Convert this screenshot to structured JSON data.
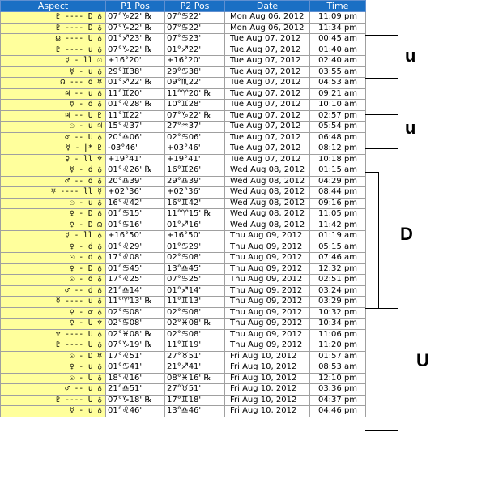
{
  "headers": [
    "Aspect",
    "P1 Pos",
    "P2 Pos",
    "Date",
    "Time"
  ],
  "rows": [
    [
      "♇ ---- D ♁",
      "07°♑22' ℞",
      "07°♋22'",
      "Mon Aug 06, 2012",
      "11:09 pm"
    ],
    [
      "♇ ---- D ♁",
      "07°♑22' ℞",
      "07°♋22'",
      "Mon Aug 06, 2012",
      "11:34 pm"
    ],
    [
      "☊ ---- U ♁",
      "01°♐23' ℞",
      "07°♋23'",
      "Tue Aug 07, 2012",
      "00:45 am"
    ],
    [
      "♇ ---- u ♁",
      "07°♑22' ℞",
      "01°♐22'",
      "Tue Aug 07, 2012",
      "01:40 am"
    ],
    [
      "☿ - ll ☉",
      "+16°20'",
      "+16°20'",
      "Tue Aug 07, 2012",
      "02:40 am"
    ],
    [
      "☿ - u ♁",
      "29°♊38'",
      "29°♋38'",
      "Tue Aug 07, 2012",
      "03:55 am"
    ],
    [
      "☊ --- d ♅",
      "01°♐22' ℞",
      "09°♏22'",
      "Tue Aug 07, 2012",
      "04:53 am"
    ],
    [
      "♃ -- u ♁",
      "11°♊20'",
      "11°♈20' ℞",
      "Tue Aug 07, 2012",
      "09:21 am"
    ],
    [
      "☿ - d ♁",
      "01°♌28' ℞",
      "10°♊28'",
      "Tue Aug 07, 2012",
      "10:10 am"
    ],
    [
      "♃ -- U ♇",
      "11°♊22'",
      "07°♑22' ℞",
      "Tue Aug 07, 2012",
      "02:57 pm"
    ],
    [
      "☉ - u ♃",
      "15°♌37'",
      "27°♒37'",
      "Tue Aug 07, 2012",
      "05:54 pm"
    ],
    [
      "♂ -- U ♁",
      "20°♎06'",
      "02°♋06'",
      "Tue Aug 07, 2012",
      "06:48 pm"
    ],
    [
      "☿ - ∥* ♇",
      "-03°46'",
      "+03°46'",
      "Tue Aug 07, 2012",
      "08:12 pm"
    ],
    [
      "♀ - ll ♆",
      "+19°41'",
      "+19°41'",
      "Tue Aug 07, 2012",
      "10:18 pm"
    ],
    [
      "☿ - d ♁",
      "01°♌26' ℞",
      "16°♊26'",
      "Wed Aug 08, 2012",
      "01:15 am"
    ],
    [
      "♂ -- d ♁",
      "20°♎39'",
      "29°♎39'",
      "Wed Aug 08, 2012",
      "04:29 pm"
    ],
    [
      "♅ ---- ll ☿",
      "+02°36'",
      "+02°36'",
      "Wed Aug 08, 2012",
      "08:44 pm"
    ],
    [
      "☉ - u ♁",
      "16°♌42'",
      "16°♊42'",
      "Wed Aug 08, 2012",
      "09:16 pm"
    ],
    [
      "♀ - D ♁",
      "01°♋15'",
      "11°♈15' ℞",
      "Wed Aug 08, 2012",
      "11:05 pm"
    ],
    [
      "♀ - D ☊",
      "01°♋16'",
      "01°♐16'",
      "Wed Aug 08, 2012",
      "11:42 pm"
    ],
    [
      "☿ - ll ♁",
      "+16°50'",
      "+16°50'",
      "Thu Aug 09, 2012",
      "01:19 am"
    ],
    [
      "♀ - d ♁",
      "01°♌29'",
      "01°♋29'",
      "Thu Aug 09, 2012",
      "05:15 am"
    ],
    [
      "☉ - d ♁",
      "17°♌08'",
      "02°♋08'",
      "Thu Aug 09, 2012",
      "07:46 am"
    ],
    [
      "♀ - D ♁",
      "01°♋45'",
      "13°♎45'",
      "Thu Aug 09, 2012",
      "12:32 pm"
    ],
    [
      "☉ - d ♁",
      "17°♌25'",
      "07°♋25'",
      "Thu Aug 09, 2012",
      "02:51 pm"
    ],
    [
      "♂ -- d ♁",
      "21°♎14'",
      "01°♐14'",
      "Thu Aug 09, 2012",
      "03:24 pm"
    ],
    [
      "☿ ---- u ♁",
      "11°♈13' ℞",
      "11°♊13'",
      "Thu Aug 09, 2012",
      "03:29 pm"
    ],
    [
      "♀ - ♂ ♁",
      "02°♋08'",
      "02°♋08'",
      "Thu Aug 09, 2012",
      "10:32 pm"
    ],
    [
      "♀ - U ♆",
      "02°♋08'",
      "02°♓08' ℞",
      "Thu Aug 09, 2012",
      "10:34 pm"
    ],
    [
      "♆ ---- U ♁",
      "02°♓08' ℞",
      "02°♋08'",
      "Thu Aug 09, 2012",
      "11:06 pm"
    ],
    [
      "♇ ---- U ♁",
      "07°♑19' ℞",
      "11°♊19'",
      "Thu Aug 09, 2012",
      "11:20 pm"
    ],
    [
      "☉ - D ♅",
      "17°♌51'",
      "27°♉51'",
      "Fri Aug 10, 2012",
      "01:57 am"
    ],
    [
      "♀ - u ♁",
      "01°♋41'",
      "21°♐41'",
      "Fri Aug 10, 2012",
      "08:53 am"
    ],
    [
      "☉ - U ♁",
      "18°♌16'",
      "08°♓16' ℞",
      "Fri Aug 10, 2012",
      "12:10 pm"
    ],
    [
      "♂ -- u ♁",
      "21°♎51'",
      "27°♉51'",
      "Fri Aug 10, 2012",
      "03:36 pm"
    ],
    [
      "♇ ---- U ♁",
      "07°♑18' ℞",
      "17°♊18'",
      "Fri Aug 10, 2012",
      "04:37 pm"
    ],
    [
      "☿ - u ♁",
      "01°♌46'",
      "13°♎46'",
      "Fri Aug 10, 2012",
      "04:46 pm"
    ]
  ],
  "brackets": [
    {
      "label": "u"
    },
    {
      "label": "u"
    },
    {
      "label": "D"
    },
    {
      "label": "U"
    }
  ]
}
